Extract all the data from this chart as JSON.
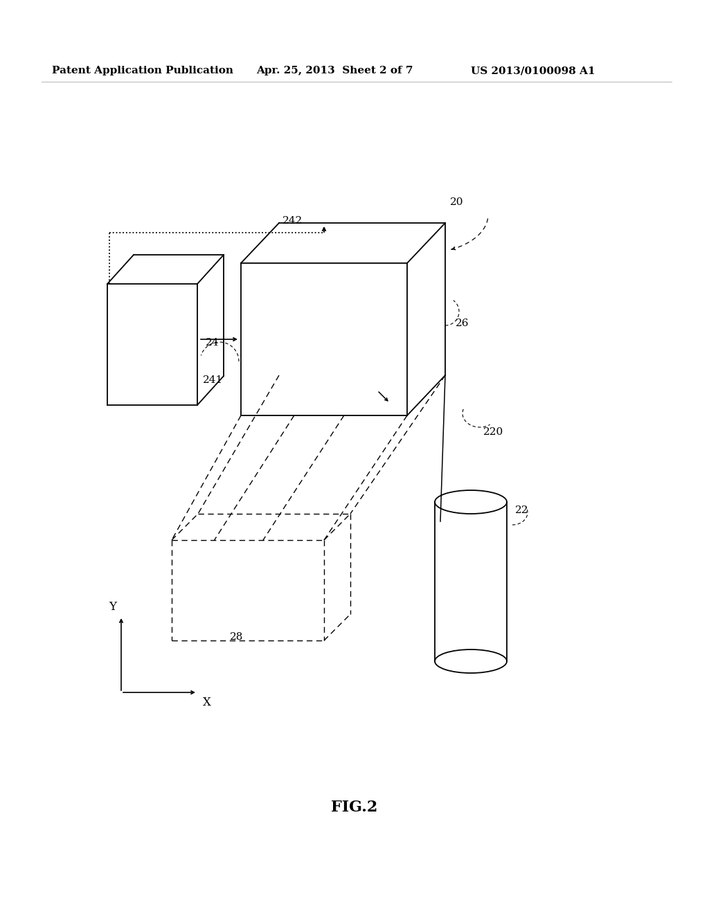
{
  "bg_color": "#ffffff",
  "line_color": "#000000",
  "header_left": "Patent Application Publication",
  "header_mid": "Apr. 25, 2013  Sheet 2 of 7",
  "header_right": "US 2013/0100098 A1",
  "fig_label": "FIG.2",
  "label_20": "20",
  "label_22": "22",
  "label_24": "24",
  "label_241": "241",
  "label_242": "242",
  "label_26": "26",
  "label_28": "28",
  "label_220": "220",
  "label_X": "X",
  "label_Y": "Y"
}
